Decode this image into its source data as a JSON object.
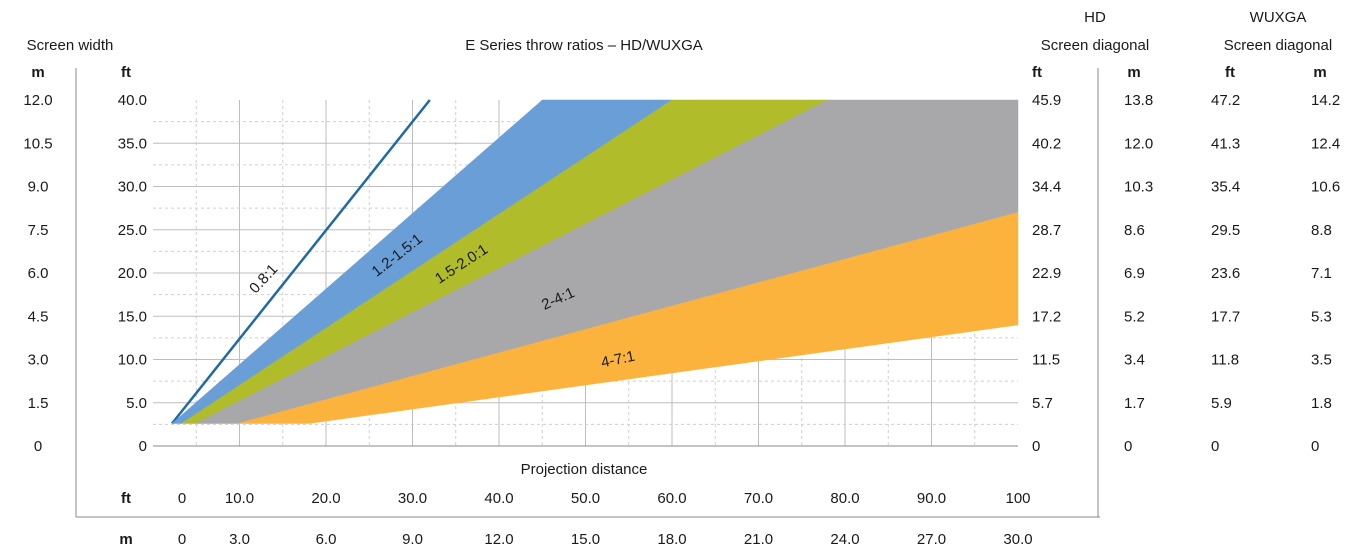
{
  "chart_data": {
    "type": "area",
    "title": "E Series throw ratios – HD/WUXGA",
    "xlabel": "Projection distance",
    "ylabel": "Screen width",
    "x_unit_ft": "ft",
    "x_unit_m": "m",
    "y_unit_m": "m",
    "y_unit_ft": "ft",
    "xlim_ft": [
      0,
      100
    ],
    "ylim_ft": [
      0,
      40
    ],
    "grid": true,
    "x_ticks_ft": [
      "0",
      "10.0",
      "20.0",
      "30.0",
      "40.0",
      "50.0",
      "60.0",
      "70.0",
      "80.0",
      "90.0",
      "100"
    ],
    "x_ticks_m": [
      "0",
      "3.0",
      "6.0",
      "9.0",
      "12.0",
      "15.0",
      "18.0",
      "21.0",
      "24.0",
      "27.0",
      "30.0"
    ],
    "y_ticks_ft": [
      "0",
      "5.0",
      "10.0",
      "15.0",
      "20.0",
      "25.0",
      "30.0",
      "35.0",
      "40.0"
    ],
    "y_ticks_m": [
      "0",
      "1.5",
      "3.0",
      "4.5",
      "6.0",
      "7.5",
      "9.0",
      "10.5",
      "12.0"
    ],
    "hd_header": "HD",
    "wuxga_header": "WUXGA",
    "diag_header": "Screen diagonal",
    "hd_ft_header": "ft",
    "hd_m_header": "m",
    "wuxga_ft_header": "ft",
    "wuxga_m_header": "m",
    "hd_diag_ft": [
      "0",
      "5.7",
      "11.5",
      "17.2",
      "22.9",
      "28.7",
      "34.4",
      "40.2",
      "45.9"
    ],
    "hd_diag_m": [
      "0",
      "1.7",
      "3.4",
      "5.2",
      "6.9",
      "8.6",
      "10.3",
      "12.0",
      "13.8"
    ],
    "wuxga_diag_ft": [
      "0",
      "5.9",
      "11.8",
      "17.7",
      "23.6",
      "29.5",
      "35.4",
      "41.3",
      "47.2"
    ],
    "wuxga_diag_m": [
      "0",
      "1.8",
      "3.5",
      "5.3",
      "7.1",
      "8.8",
      "10.6",
      "12.4",
      "14.2"
    ],
    "series": [
      {
        "name": "0.8:1",
        "kind": "line",
        "color": "#1f6aa5",
        "points": [
          [
            2.2,
            2.6
          ],
          [
            32.0,
            40.0
          ]
        ]
      },
      {
        "name": "1.2-1.5:1",
        "kind": "band",
        "color": "#6a9ed7",
        "polygon": [
          [
            2.2,
            2.6
          ],
          [
            3.3,
            2.6
          ],
          [
            60.0,
            40.0
          ],
          [
            45.0,
            40.0
          ]
        ]
      },
      {
        "name": "1.5-2.0:1",
        "kind": "band",
        "color": "#b0bc2a",
        "polygon": [
          [
            3.3,
            2.6
          ],
          [
            4.9,
            2.6
          ],
          [
            78.0,
            40.0
          ],
          [
            60.0,
            40.0
          ]
        ]
      },
      {
        "name": "2-4:1",
        "kind": "band",
        "color": "#a8a8aa",
        "polygon": [
          [
            4.9,
            2.6
          ],
          [
            9.8,
            2.6
          ],
          [
            100.0,
            27.0
          ],
          [
            100.0,
            40.0
          ],
          [
            78.0,
            40.0
          ]
        ]
      },
      {
        "name": "4-7:1",
        "kind": "band",
        "color": "#fbb33e",
        "polygon": [
          [
            9.8,
            2.6
          ],
          [
            18.0,
            2.6
          ],
          [
            100.0,
            14.0
          ],
          [
            100.0,
            27.0
          ]
        ]
      }
    ]
  }
}
